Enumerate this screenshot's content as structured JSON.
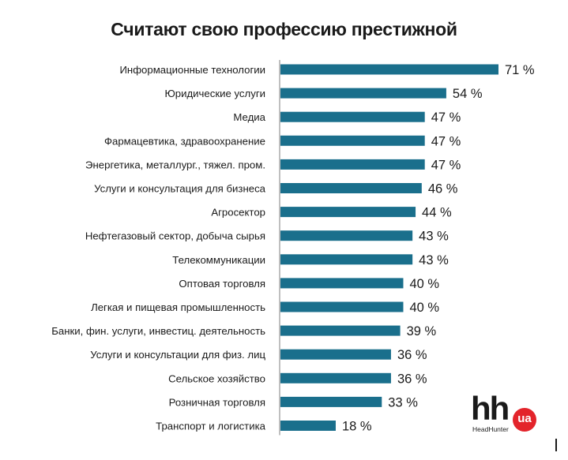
{
  "chart_data": {
    "type": "bar",
    "orientation": "horizontal",
    "title": "Считают свою профессию престижной",
    "categories": [
      "Информационные технологии",
      "Юридические услуги",
      "Медиа",
      "Фармацевтика, здравоохранение",
      "Энергетика, металлург., тяжел. пром.",
      "Услуги и консультация для бизнеса",
      "Агросектор",
      "Нефтегазовый сектор, добыча сырья",
      "Телекоммуникации",
      "Оптовая торговля",
      "Легкая и пищевая промышленность",
      "Банки, фин. услуги, инвестиц. деятельность",
      "Услуги и консультации для физ. лиц",
      "Сельское хозяйство",
      "Розничная торговля",
      "Транспорт и логистика"
    ],
    "values": [
      71,
      54,
      47,
      47,
      47,
      46,
      44,
      43,
      43,
      40,
      40,
      39,
      36,
      36,
      33,
      18
    ],
    "value_labels": [
      "71 %",
      "54 %",
      "47 %",
      "47 %",
      "47 %",
      "46 %",
      "44 %",
      "43 %",
      "43 %",
      "40 %",
      "40 %",
      "39 %",
      "36 %",
      "36 %",
      "33 %",
      "18 %"
    ],
    "unit": "%",
    "bar_color": "#1a6f8c",
    "grid": false,
    "legend": "none"
  },
  "logo": {
    "main_text": "hh",
    "badge_text": "ua",
    "sub_text": "HeadHunter",
    "badge_color": "#e3242b"
  }
}
